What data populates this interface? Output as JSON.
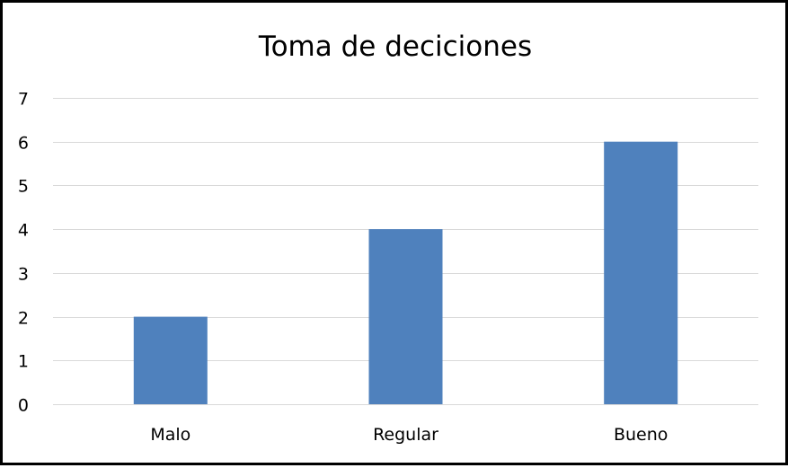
{
  "chart_data": {
    "type": "bar",
    "title": "Toma de deciciones",
    "categories": [
      "Malo",
      "Regular",
      "Bueno"
    ],
    "values": [
      2,
      4,
      6
    ],
    "xlabel": "",
    "ylabel": "",
    "ylim": [
      0,
      7
    ],
    "yticks": [
      0,
      1,
      2,
      3,
      4,
      5,
      6,
      7
    ],
    "grid": true,
    "legend": "none",
    "bar_color": "#4f81bd"
  }
}
